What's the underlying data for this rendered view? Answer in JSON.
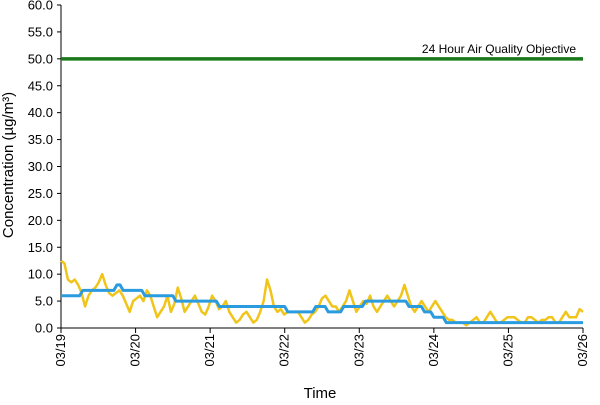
{
  "chart_data": {
    "type": "line",
    "ylabel": "Concentration (µg/m³)",
    "xlabel": "Time",
    "ylim": [
      0,
      60
    ],
    "yticks": [
      "0.0",
      "5.0",
      "10.0",
      "15.0",
      "20.0",
      "25.0",
      "30.0",
      "35.0",
      "40.0",
      "45.0",
      "50.0",
      "55.0",
      "60.0"
    ],
    "xticks": [
      "03/19",
      "03/20",
      "03/21",
      "03/22",
      "03/23",
      "03/24",
      "03/25",
      "03/26"
    ],
    "grid": false,
    "reference_line": {
      "label": "24 Hour Air Quality Objective",
      "value": 50,
      "color": "#1a7a1a"
    },
    "series": [
      {
        "color": "#f0c419",
        "values": [
          12.5,
          12,
          9,
          8.5,
          9,
          8,
          6.5,
          4,
          6,
          7,
          7.5,
          8.5,
          10,
          8,
          6.5,
          6,
          6.5,
          7,
          6,
          4.5,
          3,
          5,
          5.5,
          6,
          5,
          7,
          6,
          4,
          2,
          3,
          4,
          6,
          3,
          4.5,
          7.5,
          5.5,
          3,
          4,
          5,
          6,
          4.5,
          3,
          2.5,
          4,
          6,
          5,
          3.5,
          4,
          5,
          3,
          2,
          1,
          1.5,
          2.5,
          3,
          2,
          1,
          1.5,
          3,
          5,
          9,
          7,
          4,
          3,
          3.5,
          2.5,
          3,
          3,
          3,
          3,
          2,
          1,
          1.5,
          2.5,
          3,
          4,
          5.5,
          6,
          5,
          4,
          4,
          3,
          4,
          5,
          7,
          5,
          3,
          4,
          5,
          4.5,
          6,
          4,
          3,
          4,
          5,
          6,
          5,
          4,
          5,
          6,
          8,
          6,
          4,
          3,
          4,
          5,
          4,
          3,
          4,
          5,
          4,
          3,
          2,
          1.5,
          1.5,
          1,
          1,
          1,
          0.5,
          1,
          1.5,
          2,
          1,
          1,
          2,
          3,
          2,
          1,
          1,
          1.5,
          2,
          2,
          2,
          1.5,
          1,
          1,
          2,
          2,
          1.5,
          1,
          1.5,
          1.5,
          2,
          2,
          1,
          1,
          2,
          3,
          2,
          2,
          2,
          3.5,
          3
        ]
      },
      {
        "color": "#2b9be0",
        "values": [
          6,
          6,
          6,
          6,
          6,
          6,
          6,
          7,
          7,
          7,
          7,
          7,
          7,
          7,
          7,
          7,
          7,
          7,
          8,
          8,
          7,
          7,
          7,
          7,
          7,
          7,
          7,
          6,
          6,
          6,
          6,
          6,
          6,
          6,
          6,
          6,
          6,
          5,
          5,
          5,
          5,
          5,
          5,
          5,
          5,
          5,
          5,
          5,
          5,
          5,
          5,
          4,
          4,
          4,
          4,
          4,
          4,
          4,
          4,
          4,
          4,
          4,
          4,
          4,
          4,
          4,
          4,
          4,
          4,
          4,
          4,
          4,
          4,
          3,
          3,
          3,
          3,
          3,
          3,
          3,
          3,
          3,
          4,
          4,
          4,
          4,
          3,
          3,
          3,
          3,
          3,
          4,
          4,
          4,
          4,
          4,
          4,
          4,
          5,
          5,
          5,
          5,
          5,
          5,
          5,
          5,
          5,
          5,
          5,
          5,
          5,
          5,
          4,
          4,
          4,
          4,
          4,
          3,
          3,
          3,
          2,
          2,
          2,
          2,
          1,
          1,
          1,
          1,
          1,
          1,
          1,
          1,
          1,
          1,
          1,
          1,
          1,
          1,
          1,
          1,
          1,
          1,
          1,
          1,
          1,
          1,
          1,
          1,
          1,
          1,
          1,
          1,
          1,
          1,
          1,
          1,
          1,
          1,
          1,
          1,
          1,
          1,
          1,
          1,
          1,
          1,
          1,
          1,
          1
        ]
      }
    ]
  }
}
